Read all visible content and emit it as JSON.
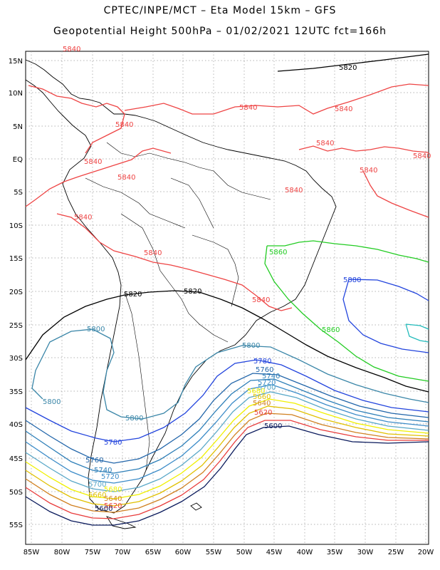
{
  "header": {
    "line1": "CPTEC/INPE/MCT –  Eta Model 15km – GFS",
    "line2": "Geopotential Height 500hPa – 01/02/2021 12UTC fct=166h"
  },
  "axes": {
    "lat_labels": [
      "15N",
      "10N",
      "5N",
      "EQ",
      "5S",
      "10S",
      "15S",
      "20S",
      "25S",
      "30S",
      "35S",
      "40S",
      "45S",
      "50S",
      "55S"
    ],
    "lon_labels": [
      "85W",
      "80W",
      "75W",
      "70W",
      "65W",
      "60W",
      "55W",
      "50W",
      "45W",
      "40W",
      "35W",
      "30W",
      "25W",
      "20W"
    ]
  },
  "colors": {
    "c5600": "#0a1a5c",
    "c5620": "#e83c3c",
    "c5640": "#d08020",
    "c5660": "#e0c000",
    "c5680": "#f0f000",
    "c5700": "#5aa8c8",
    "c5720": "#3c8cc8",
    "c5740": "#2e7fb8",
    "c5760": "#2266aa",
    "c5780": "#2244dd",
    "c5800": "#3a86a8",
    "c5820": "#000000",
    "c5840": "#ee4444",
    "c5860": "#22cc22",
    "c5880": "#2244dd",
    "c5900": "#22bbbb",
    "coast": "#000000"
  },
  "labels": [
    {
      "id": "l5840a",
      "text": "5840"
    },
    {
      "id": "l5820a",
      "text": "5820"
    },
    {
      "id": "l5840b",
      "text": "5840"
    },
    {
      "id": "l5840c",
      "text": "5840"
    },
    {
      "id": "l5840d",
      "text": "5840"
    },
    {
      "id": "l5840e",
      "text": "5840"
    },
    {
      "id": "l5840f",
      "text": "5840"
    },
    {
      "id": "l5840g",
      "text": "5840"
    },
    {
      "id": "l5840h",
      "text": "5840"
    },
    {
      "id": "l5840i",
      "text": "5840"
    },
    {
      "id": "l5840j",
      "text": "5840"
    },
    {
      "id": "l5840k",
      "text": "5840"
    },
    {
      "id": "l5840l",
      "text": "5840"
    },
    {
      "id": "l5860a",
      "text": "5860"
    },
    {
      "id": "l5880a",
      "text": "5880"
    },
    {
      "id": "l5860b",
      "text": "5860"
    },
    {
      "id": "l5820b",
      "text": "5820"
    },
    {
      "id": "l5820c",
      "text": "5820"
    },
    {
      "id": "l5840m",
      "text": "5840"
    },
    {
      "id": "l5800a",
      "text": "5800"
    },
    {
      "id": "l5800b",
      "text": "5800"
    },
    {
      "id": "l5800c",
      "text": "5800"
    },
    {
      "id": "l5800d",
      "text": "5800"
    },
    {
      "id": "l5780a",
      "text": "5780"
    },
    {
      "id": "l5760a",
      "text": "5760"
    },
    {
      "id": "l5740a",
      "text": "5740"
    },
    {
      "id": "l5720a",
      "text": "5720"
    },
    {
      "id": "l5700a",
      "text": "5700"
    },
    {
      "id": "l5680a",
      "text": "5680"
    },
    {
      "id": "l5660a",
      "text": "5660"
    },
    {
      "id": "l5640a",
      "text": "5640"
    },
    {
      "id": "l5620a",
      "text": "5620"
    },
    {
      "id": "l5600a",
      "text": "5600"
    },
    {
      "id": "l5780b",
      "text": "5780"
    },
    {
      "id": "l5760b",
      "text": "5760"
    },
    {
      "id": "l5740b",
      "text": "5740"
    },
    {
      "id": "l5720b",
      "text": "5720"
    },
    {
      "id": "l5700b",
      "text": "5700"
    },
    {
      "id": "l5680b",
      "text": "5680"
    },
    {
      "id": "l5660b",
      "text": "5660"
    },
    {
      "id": "l5640b",
      "text": "5640"
    },
    {
      "id": "l5620b",
      "text": "5620"
    },
    {
      "id": "l5600b",
      "text": "5600"
    }
  ]
}
